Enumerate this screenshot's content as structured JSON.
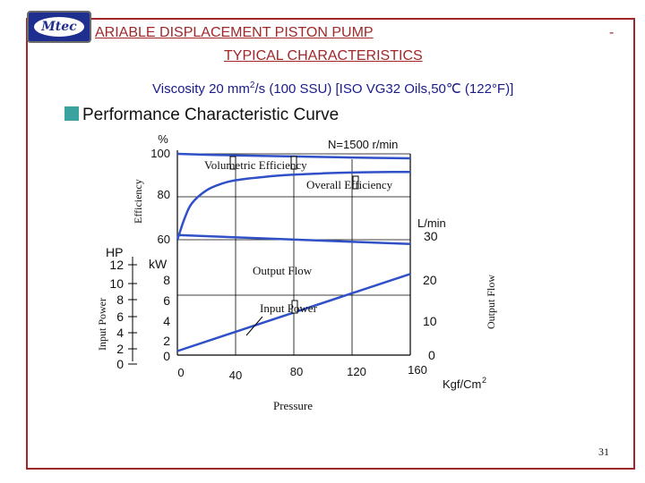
{
  "header": {
    "logo_text": "Mtec",
    "title_line1": "ARIABLE DISPLACEMENT PISTON PUMP",
    "title_dash": "-",
    "title_line2": "TYPICAL CHARACTERISTICS",
    "viscosity_pre": "Viscosity 20 mm",
    "viscosity_sup": "2",
    "viscosity_post": "/s (100 SSU) [ISO VG32 Oils,50℃ (122°F)]",
    "section_title": "Performance Characteristic Curve"
  },
  "colors": {
    "accent": "#a0282a",
    "text_blue": "#1a1a8a",
    "curve": "#3050c8",
    "section_square": "#3aa39f"
  },
  "chart_data": {
    "type": "line",
    "speed_label": "N=1500 r/min",
    "x_axis": {
      "label": "Pressure",
      "unit": "Kgf/Cm",
      "unit_sup": "2",
      "ticks": [
        "0",
        "40",
        "80",
        "120",
        "160"
      ],
      "range": [
        0,
        160
      ]
    },
    "y_axes": {
      "efficiency": {
        "label": "Efficiency",
        "unit": "%",
        "ticks": [
          "100",
          "80",
          "60"
        ],
        "range": [
          60,
          100
        ]
      },
      "power_hp": {
        "label": "Input Power",
        "unit": "HP",
        "ticks": [
          "12",
          "10",
          "8",
          "6",
          "4",
          "2",
          "0"
        ]
      },
      "power_kw": {
        "unit": "kW",
        "ticks": [
          "8",
          "6",
          "4",
          "2",
          "0"
        ],
        "range": [
          0,
          9
        ]
      },
      "flow": {
        "label": "Output Flow",
        "unit": "L/min",
        "ticks": [
          "30",
          "20",
          "10",
          "0"
        ],
        "range": [
          0,
          34
        ]
      }
    },
    "series": [
      {
        "name": "Volumetric Efficiency",
        "axis": "efficiency",
        "x": [
          0,
          20,
          40,
          80,
          120,
          160
        ],
        "y": [
          100,
          99.6,
          99.3,
          98.8,
          98.3,
          97.9
        ]
      },
      {
        "name": "Overall Efficiency",
        "axis": "efficiency",
        "x": [
          0,
          5,
          10,
          20,
          30,
          40,
          60,
          80,
          100,
          120,
          140,
          160
        ],
        "y": [
          60,
          70,
          77,
          83,
          86,
          87.7,
          89.3,
          90.3,
          90.9,
          91.3,
          91.5,
          91.6
        ]
      },
      {
        "name": "Output Flow",
        "axis": "flow",
        "x": [
          0,
          160
        ],
        "y": [
          29.5,
          27.3
        ]
      },
      {
        "name": "Input Power",
        "axis": "power_kw",
        "x": [
          0,
          160
        ],
        "y": [
          0.4,
          8.1
        ]
      }
    ],
    "grid": true
  },
  "footer": {
    "page_number": "31"
  }
}
